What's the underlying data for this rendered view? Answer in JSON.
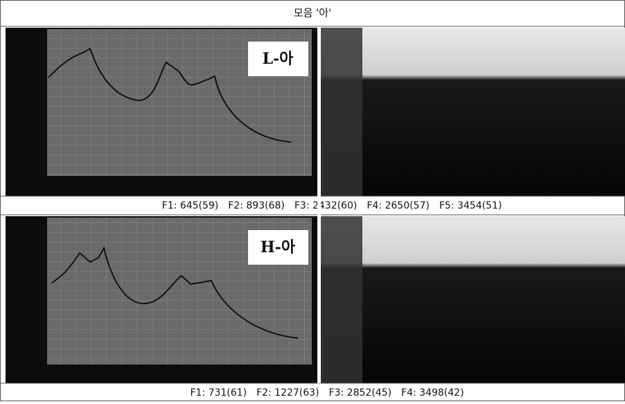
{
  "title": "모음 '아'",
  "panels": [
    {
      "label": "L-아",
      "formants": [
        "F1: 645(59)",
        "F2: 893(68)",
        "F3: 2432(60)",
        "F4: 2650(57)",
        "F5: 3454(51)"
      ]
    },
    {
      "label": "H-아",
      "formants": [
        "F1: 731(61)",
        "F2: 1227(63)",
        "F3: 2852(45)",
        "F4: 3498(42)"
      ]
    }
  ]
}
